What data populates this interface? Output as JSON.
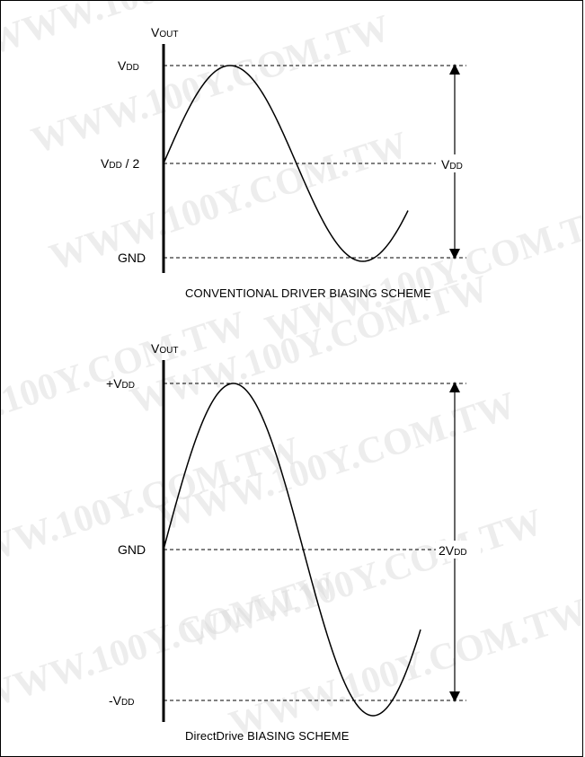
{
  "watermark": {
    "text": "WWW.100Y.COM.TW"
  },
  "top_panel": {
    "axis_label": {
      "main": "V",
      "sub": "OUT"
    },
    "level_top": {
      "main": "V",
      "sub": "DD",
      "suffix": ""
    },
    "level_mid": {
      "main": "V",
      "sub": "DD",
      "suffix": " / 2"
    },
    "level_bottom": {
      "main": "GND"
    },
    "span_label": {
      "main": "V",
      "sub": "DD"
    },
    "caption": "CONVENTIONAL DRIVER BIASING SCHEME"
  },
  "bottom_panel": {
    "axis_label": {
      "main": "V",
      "sub": "OUT"
    },
    "level_top": {
      "prefix": "+",
      "main": "V",
      "sub": "DD"
    },
    "level_mid": {
      "main": "GND"
    },
    "level_bottom": {
      "prefix": "-",
      "main": "V",
      "sub": "DD"
    },
    "span_label": {
      "prefix": "2",
      "main": "V",
      "sub": "DD"
    },
    "caption": "DirectDrive BIASING SCHEME"
  }
}
